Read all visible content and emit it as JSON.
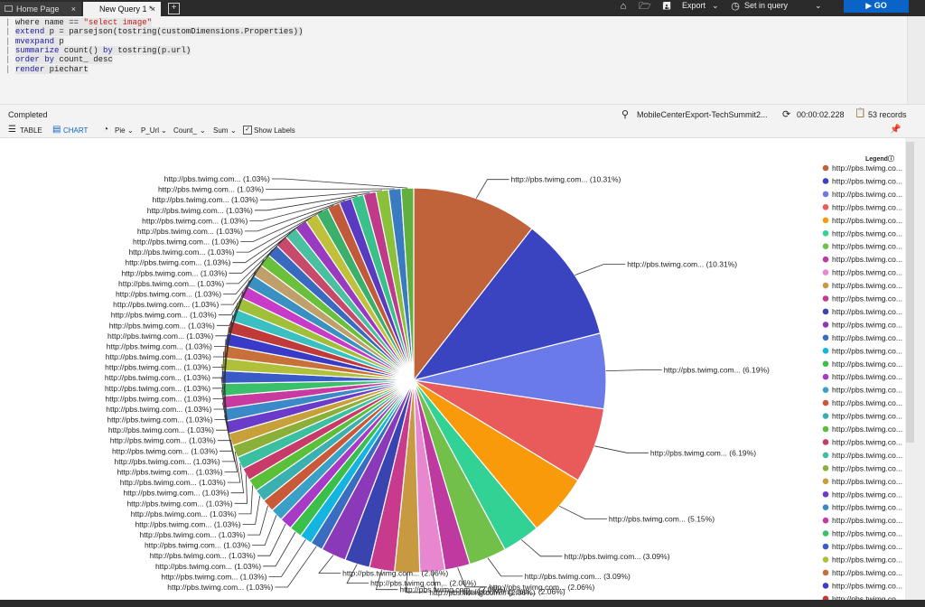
{
  "tabs": {
    "home": {
      "label": "Home Page",
      "close": "×"
    },
    "query": {
      "label": "New Query 1 *",
      "close": "×"
    },
    "new": "+"
  },
  "toolbar": {
    "export_label": "Export",
    "set_in_query_label": "Set in query",
    "go_label": "▶ GO"
  },
  "query_lines": [
    {
      "parts": [
        {
          "t": "where name == ",
          "c": ""
        },
        {
          "t": "\"select image\"",
          "c": "str"
        }
      ]
    },
    {
      "parts": [
        {
          "t": "extend",
          "c": "kw"
        },
        {
          "t": " p = parsejson(tostring(customDimensions.Properties))",
          "c": ""
        }
      ]
    },
    {
      "parts": [
        {
          "t": "mvexpand",
          "c": "kw"
        },
        {
          "t": " p",
          "c": ""
        }
      ]
    },
    {
      "parts": [
        {
          "t": "summarize",
          "c": "kw"
        },
        {
          "t": " count() ",
          "c": ""
        },
        {
          "t": "by",
          "c": "kw"
        },
        {
          "t": " tostring(p.url)",
          "c": ""
        }
      ]
    },
    {
      "parts": [
        {
          "t": "order by",
          "c": "kw"
        },
        {
          "t": " count_ desc",
          "c": ""
        }
      ]
    },
    {
      "parts": [
        {
          "t": "render",
          "c": "kw"
        },
        {
          "t": " piechart",
          "c": ""
        }
      ]
    }
  ],
  "status": {
    "state": "Completed",
    "source": "MobileCenterExport-TechSummit2...",
    "duration": "00:00:02.228",
    "records": "53 records"
  },
  "view_toolbar": {
    "table_label": "TABLE",
    "chart_label": "CHART",
    "chart_type": "Pie",
    "x_column": "P_Url",
    "y_column": "Count_",
    "aggregation": "Sum",
    "show_labels": "Show Labels"
  },
  "legend_title": "Legend",
  "chart_data": {
    "type": "pie",
    "slice_label": "http://pbs.twimg.com...",
    "legend_label": "http://pbs.twimg.co...",
    "values": [
      10.31,
      10.31,
      6.19,
      6.19,
      5.15,
      3.09,
      3.09,
      2.06,
      2.06,
      2.06,
      2.06,
      2.06,
      2.06,
      1.03,
      1.03,
      1.03,
      1.03,
      1.03,
      1.03,
      1.03,
      1.03,
      1.03,
      1.03,
      1.03,
      1.03,
      1.03,
      1.03,
      1.03,
      1.03,
      1.03,
      1.03,
      1.03,
      1.03,
      1.03,
      1.03,
      1.03,
      1.03,
      1.03,
      1.03,
      1.03,
      1.03,
      1.03,
      1.03,
      1.03,
      1.03,
      1.03,
      1.03,
      1.03,
      1.03,
      1.03,
      1.03,
      1.03,
      1.03
    ],
    "percent_labels": [
      "(10.31%)",
      "(10.31%)",
      "(6.19%)",
      "(6.19%)",
      "(5.15%)",
      "(3.09%)",
      "(3.09%)",
      "(2.06%)",
      "(2.06%)",
      "(2.06%)",
      "(2.06%)",
      "(2.06%)",
      "(2.06%)",
      "(1.03%)",
      "(1.03%)",
      "(1.03%)",
      "(1.03%)",
      "(1.03%)",
      "(1.03%)",
      "(1.03%)",
      "(1.03%)",
      "(1.03%)",
      "(1.03%)",
      "(1.03%)",
      "(1.03%)",
      "(1.03%)",
      "(1.03%)",
      "(1.03%)",
      "(1.03%)",
      "(1.03%)",
      "(1.03%)",
      "(1.03%)",
      "(1.03%)",
      "(1.03%)",
      "(1.03%)",
      "(1.03%)",
      "(1.03%)",
      "(1.03%)",
      "(1.03%)",
      "(1.03%)",
      "(1.03%)",
      "(1.03%)",
      "(1.03%)",
      "(1.03%)",
      "(1.03%)",
      "(1.03%)",
      "(1.03%)",
      "(1.03%)",
      "(1.03%)",
      "(1.03%)",
      "(1.03%)",
      "(1.03%)",
      "(1.03%)"
    ],
    "colors": [
      "#c0623a",
      "#3b44c0",
      "#6a7ae8",
      "#e95a5a",
      "#f99a0a",
      "#31d294",
      "#72c04a",
      "#bf3aa0",
      "#e687cf",
      "#c79a42",
      "#c83a8c",
      "#3a44b0",
      "#8a3ab8",
      "#3a6cc0",
      "#12b4e0",
      "#3ac04a",
      "#a83ac8",
      "#3aa0c8",
      "#c85a3a",
      "#3ab0b0",
      "#5ac03a",
      "#c83a6a",
      "#3ac0a0",
      "#8ab03a",
      "#c8a03a",
      "#6a3ac8",
      "#3a8ac8",
      "#c83aa0",
      "#3ac06a",
      "#3a5ac8",
      "#b0c03a",
      "#c8703a",
      "#3a3ac8",
      "#c03a3a",
      "#3ac0c0",
      "#a0c03a",
      "#c83ac8",
      "#3a90c0",
      "#c0a06a",
      "#6ac03a",
      "#3a6ac0",
      "#c84a6a",
      "#4ac0a0",
      "#9a3ac0",
      "#c0c03a",
      "#3ab06a",
      "#c05a3a",
      "#5a3ac0",
      "#3ac08a",
      "#c03a8a",
      "#8ac03a",
      "#3a7ac0",
      "#60b040"
    ],
    "legend_visible_count": 34
  }
}
